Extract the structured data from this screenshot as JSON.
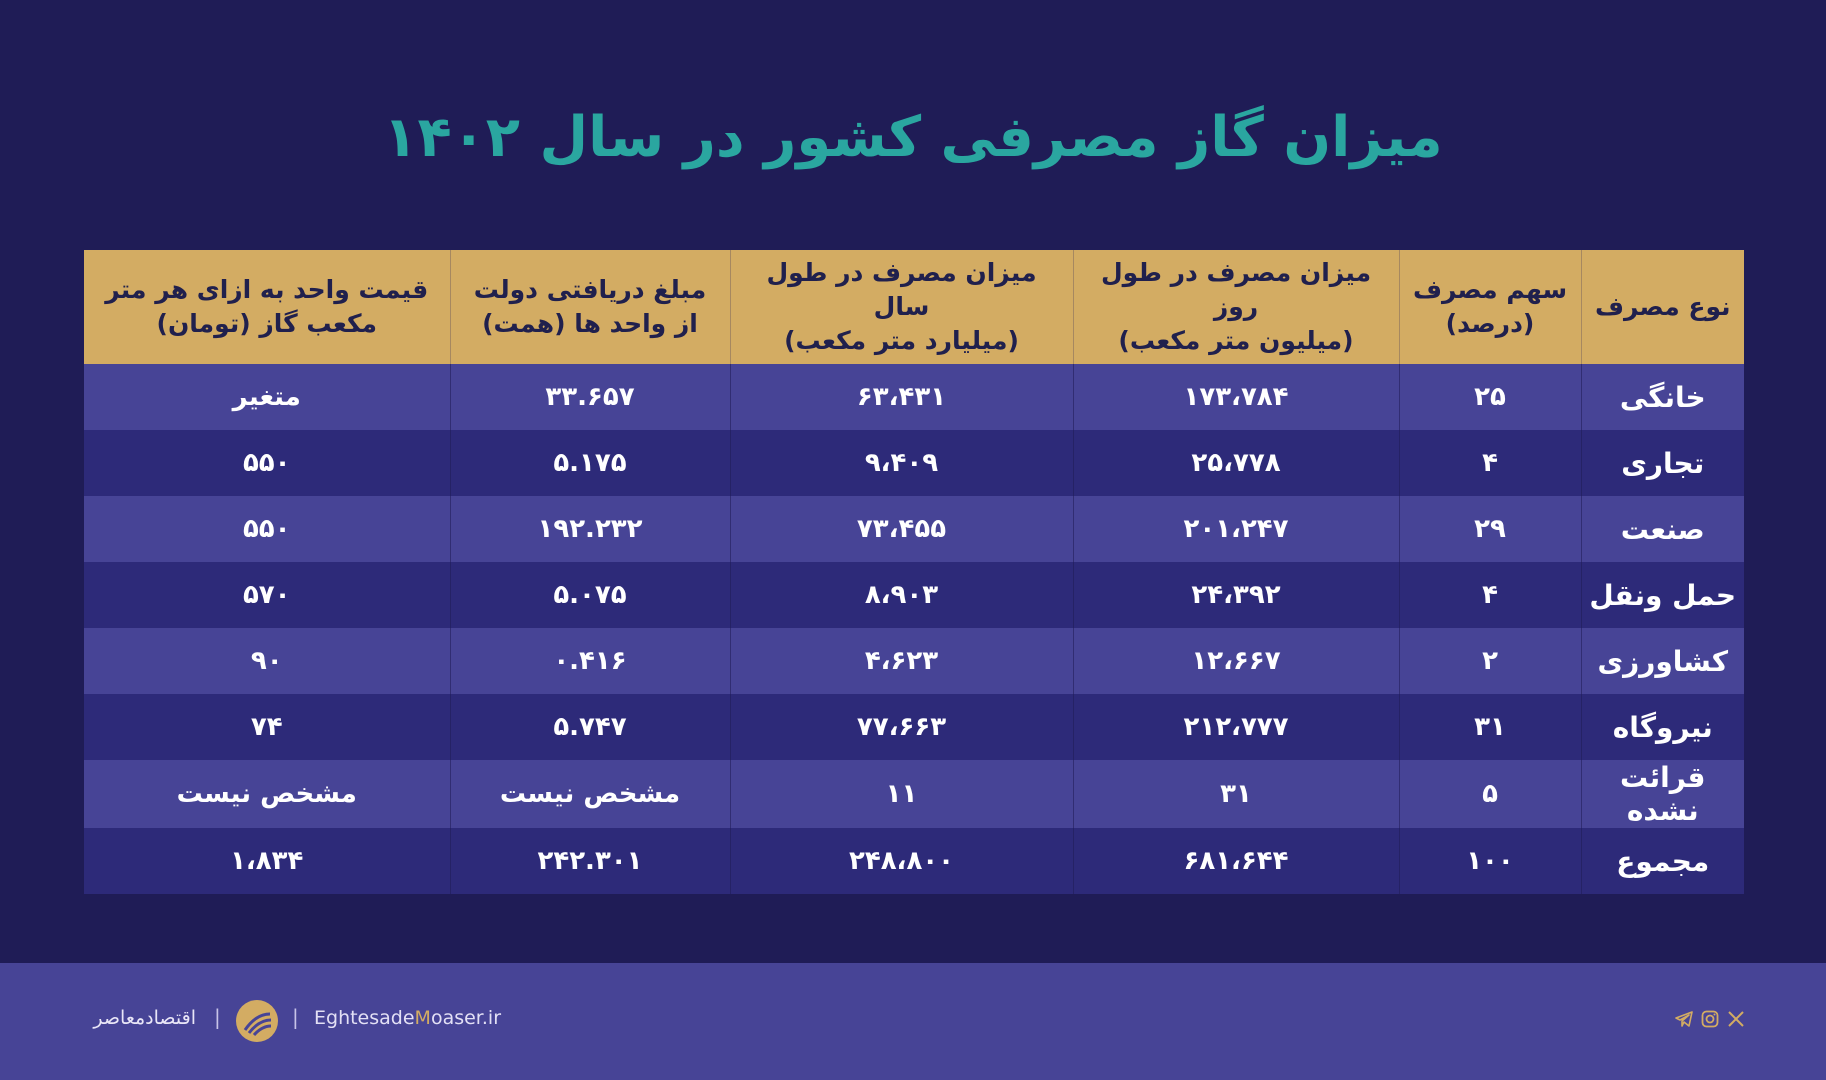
{
  "title": "میزان گاز مصرفی کشور در سال ۱۴۰۲",
  "table": {
    "headers": [
      [
        "نوع مصرف"
      ],
      [
        "سهم مصرف",
        "(درصد)"
      ],
      [
        "میزان مصرف در طول روز",
        "(میلیون متر مکعب)"
      ],
      [
        "میزان مصرف در طول سال",
        "(میلیارد متر مکعب)"
      ],
      [
        "مبلغ دریافتی دولت",
        "از واحد ها (همت)"
      ],
      [
        "قیمت واحد به ازای هر متر",
        "مکعب گاز (تومان)"
      ]
    ],
    "rows": [
      [
        "خانگی",
        "۲۵",
        "۱۷۳،۷۸۴",
        "۶۳،۴۳۱",
        "۳۳.۶۵۷",
        "متغیر"
      ],
      [
        "تجاری",
        "۴",
        "۲۵،۷۷۸",
        "۹،۴۰۹",
        "۵.۱۷۵",
        "۵۵۰"
      ],
      [
        "صنعت",
        "۲۹",
        "۲۰۱،۲۴۷",
        "۷۳،۴۵۵",
        "۱۹۲.۲۳۲",
        "۵۵۰"
      ],
      [
        "حمل ونقل",
        "۴",
        "۲۴،۳۹۲",
        "۸،۹۰۳",
        "۵.۰۷۵",
        "۵۷۰"
      ],
      [
        "کشاورزی",
        "۲",
        "۱۲،۶۶۷",
        "۴،۶۲۳",
        "۰.۴۱۶",
        "۹۰"
      ],
      [
        "نیروگاه",
        "۳۱",
        "۲۱۲،۷۷۷",
        "۷۷،۶۶۳",
        "۵.۷۴۷",
        "۷۴"
      ],
      [
        "قرائت نشده",
        "۵",
        "۳۱",
        "۱۱",
        "مشخص نیست",
        "مشخص نیست"
      ],
      [
        "مجموع",
        "۱۰۰",
        "۶۸۱،۶۴۴",
        "۲۴۸،۸۰۰",
        "۲۴۲.۳۰۱",
        "۱،۸۳۴"
      ]
    ]
  },
  "footer": {
    "brand": "اقتصادمعاصر",
    "separator": "|",
    "site_pre": "Eghtesade",
    "site_accent": "M",
    "site_post": "oaser.ir",
    "social_icons": [
      "x-icon",
      "instagram-icon",
      "telegram-icon"
    ]
  },
  "colors": {
    "background": "#1f1c56",
    "title": "#2aa6a0",
    "header": "#d3ac63",
    "row_light": "#474496",
    "row_dark": "#2d2a79",
    "footer": "#474496"
  }
}
